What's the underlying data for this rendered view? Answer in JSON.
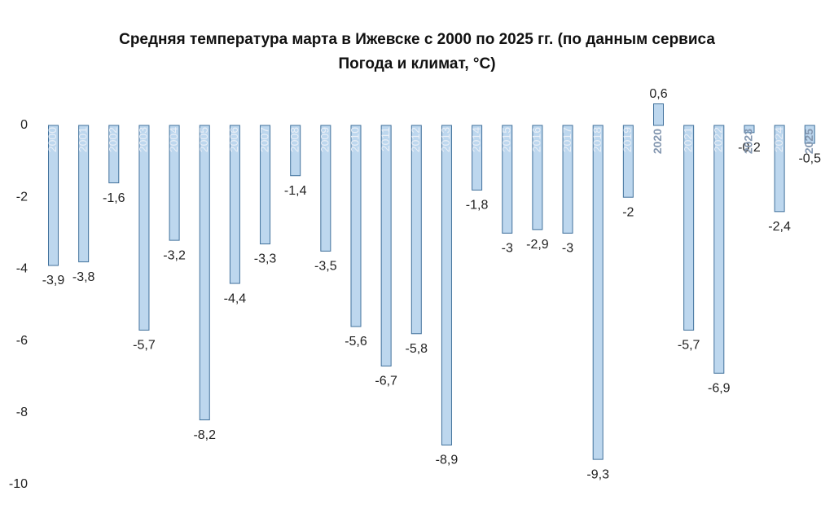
{
  "chart_data": {
    "type": "bar",
    "title": "Средняя температура марта в Ижевске с 2000 по 2025 гг. (по данным сервиса Погода и климат, °C)",
    "title_lines": [
      "Средняя температура марта в Ижевске с 2000 по 2025 гг. (по данным сервиса",
      "Погода и климат, °C)"
    ],
    "xlabel": "",
    "ylabel": "",
    "categories": [
      "2000",
      "2001",
      "2002",
      "2003",
      "2004",
      "2005",
      "2006",
      "2007",
      "2008",
      "2009",
      "2010",
      "2011",
      "2012",
      "2013",
      "2014",
      "2015",
      "2016",
      "2017",
      "2018",
      "2019",
      "2020",
      "2021",
      "2022",
      "2023",
      "2024",
      "2025"
    ],
    "values": [
      -3.9,
      -3.8,
      -1.6,
      -5.7,
      -3.2,
      -8.2,
      -4.4,
      -3.3,
      -1.4,
      -3.5,
      -5.6,
      -6.7,
      -5.8,
      -8.9,
      -1.8,
      -3,
      -2.9,
      -3,
      -9.3,
      -2,
      0.6,
      -5.7,
      -6.9,
      -0.2,
      -2.4,
      -0.5
    ],
    "data_labels": [
      "-3,9",
      "-3,8",
      "-1,6",
      "-5,7",
      "-3,2",
      "-8,2",
      "-4,4",
      "-3,3",
      "-1,4",
      "-3,5",
      "-5,6",
      "-6,7",
      "-5,8",
      "-8,9",
      "-1,8",
      "-3",
      "-2,9",
      "-3",
      "-9,3",
      "-2",
      "0,6",
      "-5,7",
      "-6,9",
      "-0,2",
      "-2,4",
      "-0,5"
    ],
    "y_ticks": [
      0,
      -2,
      -4,
      -6,
      -8,
      -10
    ],
    "y_tick_labels": [
      "0",
      "-2",
      "-4",
      "-6",
      "-8",
      "-10"
    ],
    "ylim": [
      -10,
      1
    ],
    "grid": false,
    "legend": "none",
    "colors": {
      "bar_fill": "#bdd7ee",
      "bar_stroke": "#41719c",
      "category_label_on_bar": "#e9eff7",
      "category_label_above_axis": "#8497b0"
    }
  }
}
